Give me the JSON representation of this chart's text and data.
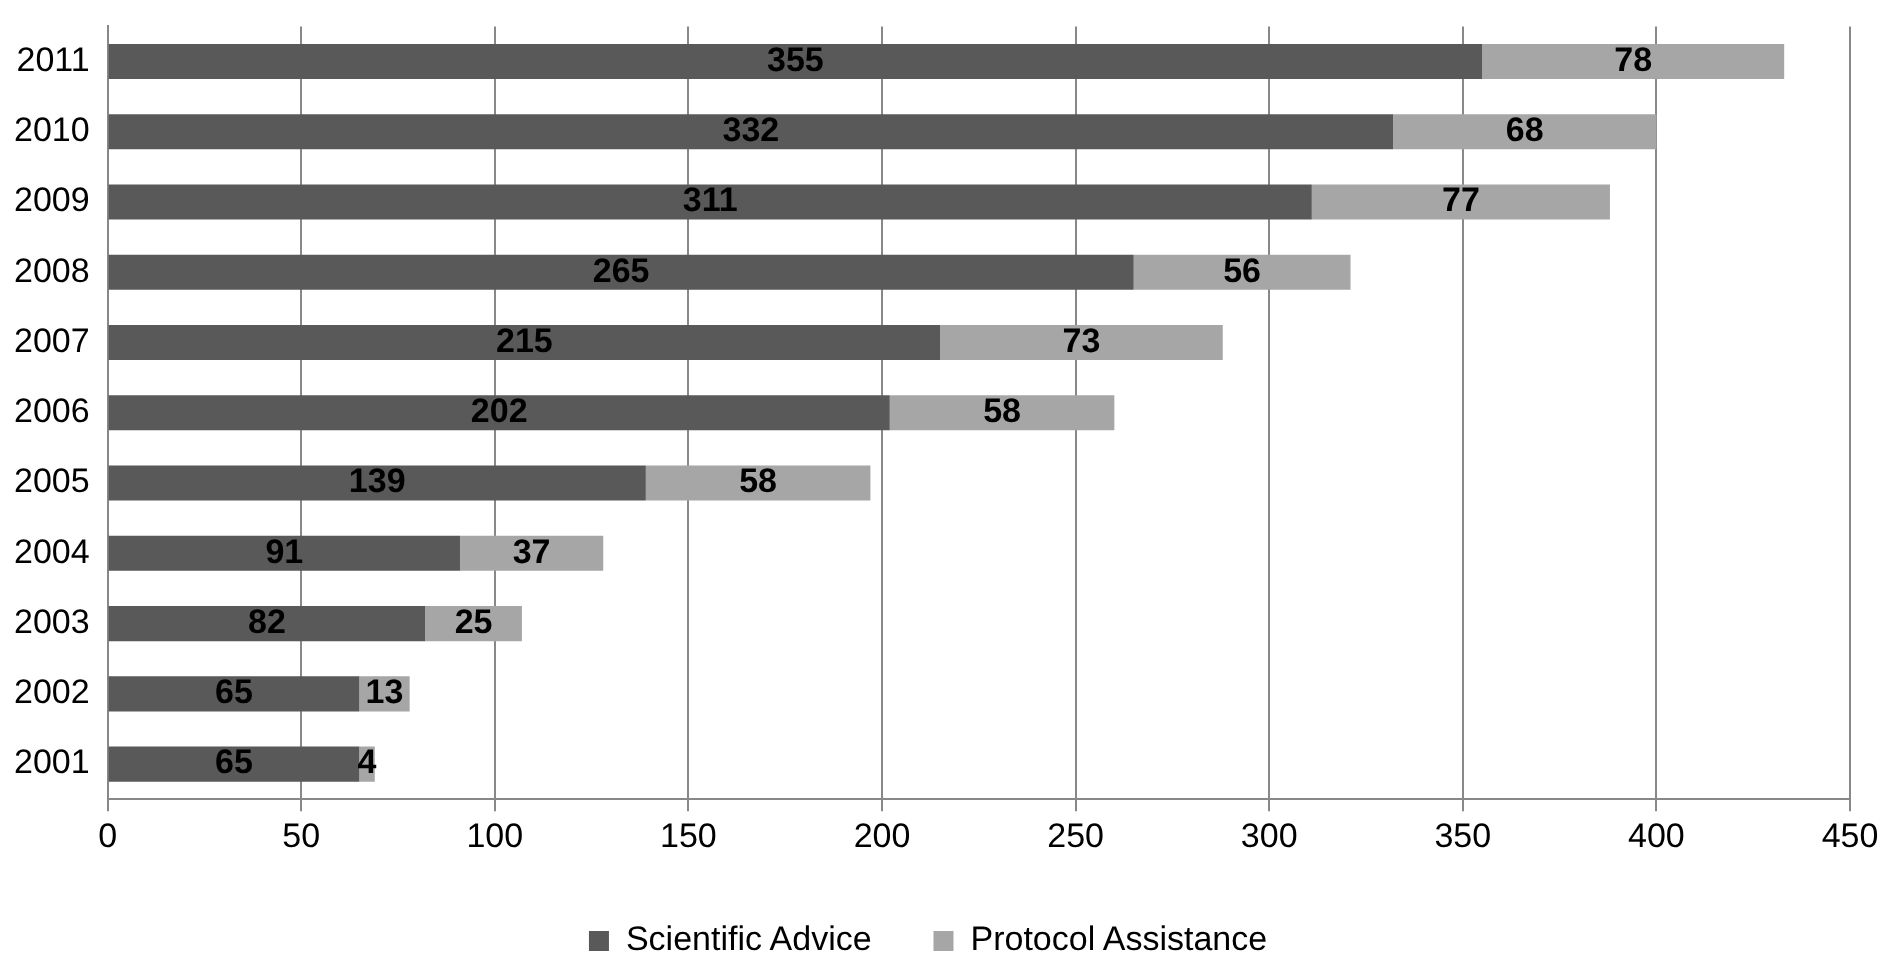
{
  "chart_data": {
    "type": "bar",
    "orientation": "horizontal",
    "stacked": true,
    "categories": [
      "2011",
      "2010",
      "2009",
      "2008",
      "2007",
      "2006",
      "2005",
      "2004",
      "2003",
      "2002",
      "2001"
    ],
    "series": [
      {
        "name": "Scientific Advice",
        "color": "#595959",
        "values": [
          355,
          332,
          311,
          265,
          215,
          202,
          139,
          91,
          82,
          65,
          65
        ]
      },
      {
        "name": "Protocol Assistance",
        "color": "#a6a6a6",
        "values": [
          78,
          68,
          77,
          56,
          73,
          58,
          58,
          37,
          25,
          13,
          4
        ]
      }
    ],
    "xlim": [
      0,
      450
    ],
    "xticks": [
      0,
      50,
      100,
      150,
      200,
      250,
      300,
      350,
      400,
      450
    ],
    "grid": "x",
    "legend": "bottom",
    "data_labels": true
  }
}
